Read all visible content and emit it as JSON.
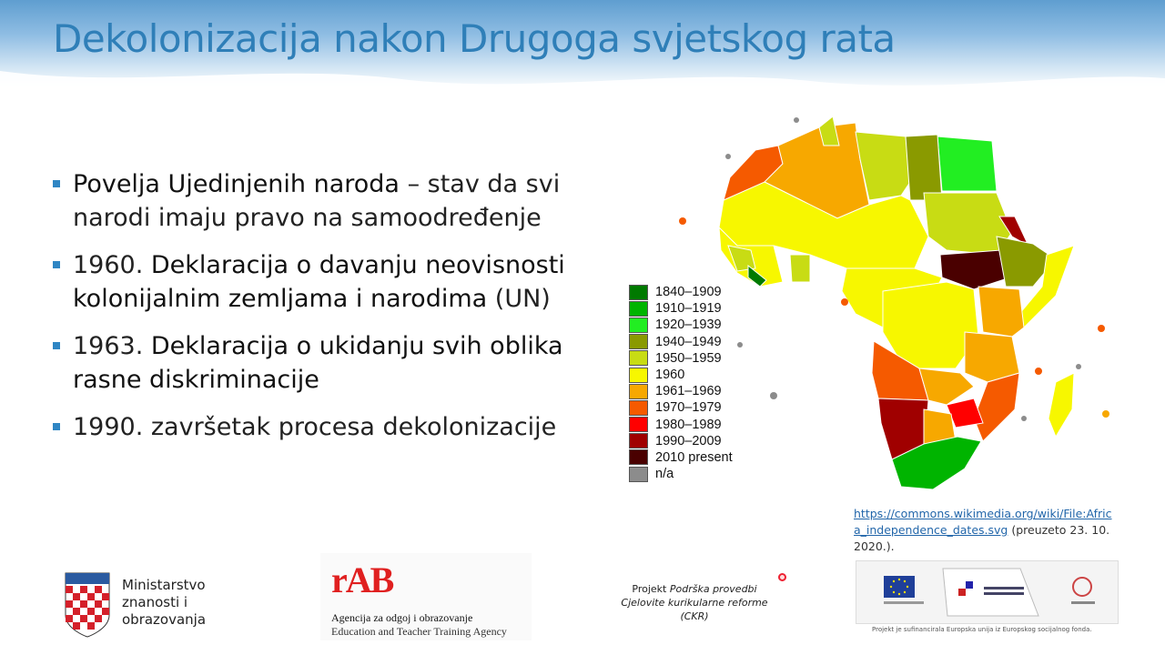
{
  "slide": {
    "title": "Dekolonizacija nakon Drugoga svjetskog rata"
  },
  "bullets": [
    {
      "bold": "Povelja Ujedinjenih naroda",
      "rest": " – stav da svi narodi imaju pravo na samoodređenje"
    },
    {
      "prefix": "1960. ",
      "bold": "Deklaracija o davanju neovisnosti kolonijalnim zemljama i narodima",
      "rest": " (UN)"
    },
    {
      "prefix": "1963. ",
      "bold": "Deklaracija o ukidanju svih oblika rasne diskriminacije",
      "rest": ""
    },
    {
      "prefix": "1990. završetak procesa dekolonizacije",
      "bold": "",
      "rest": ""
    }
  ],
  "legend": [
    {
      "label": "1840–1909",
      "color": "#007a00"
    },
    {
      "label": "1910–1919",
      "color": "#00b400"
    },
    {
      "label": "1920–1939",
      "color": "#22ee22"
    },
    {
      "label": "1940–1949",
      "color": "#8a9a00"
    },
    {
      "label": "1950–1959",
      "color": "#c8dc14"
    },
    {
      "label": "1960",
      "color": "#f7f700"
    },
    {
      "label": "1961–1969",
      "color": "#f7a800"
    },
    {
      "label": "1970–1979",
      "color": "#f55a00"
    },
    {
      "label": "1980–1989",
      "color": "#ff0000"
    },
    {
      "label": "1990–2009",
      "color": "#a00000"
    },
    {
      "label": "2010 present",
      "color": "#4a0000"
    },
    {
      "label": "n/a",
      "color": "#8c8c8c"
    }
  ],
  "source": {
    "link": "https://commons.wikimedia.org/wiki/File:Africa_independence_dates.svg",
    "note": " (preuzeto 23. 10. 2020.)."
  },
  "ministry": {
    "line1": "Ministarstvo",
    "line2": "znanosti i",
    "line3": "obrazovanja"
  },
  "agency": {
    "logo": "rAB",
    "line1": "Agencija za odgoj i obrazovanje",
    "line2": "Education and Teacher Training Agency"
  },
  "project": {
    "line1a": "Projekt ",
    "line1b": "Podrška provedbi",
    "line2": "Cjelovite kurikularne reforme",
    "line3": "(CKR)"
  },
  "eu": {
    "footer": "Projekt je sufinancirala Europska unija iz Europskog socijalnog fonda."
  }
}
